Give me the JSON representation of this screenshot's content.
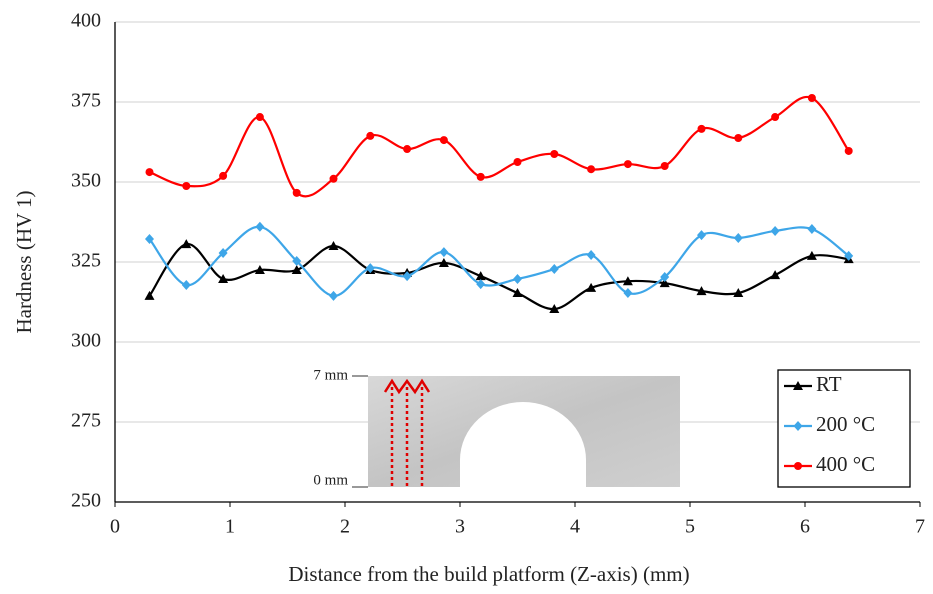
{
  "chart_data": {
    "type": "line",
    "xlabel": "Distance from the build platform (Z-axis) (mm)",
    "ylabel": "Hardness (HV 1)",
    "x": [
      0.3,
      0.62,
      0.94,
      1.26,
      1.58,
      1.9,
      2.22,
      2.54,
      2.86,
      3.18,
      3.5,
      3.82,
      4.14,
      4.46,
      4.78,
      5.1,
      5.42,
      5.74,
      6.06,
      6.38
    ],
    "series": [
      {
        "name": "RT",
        "color": "#000000",
        "marker": "triangle",
        "values": [
          314.4,
          330.6,
          319.7,
          322.5,
          322.5,
          330,
          322.5,
          321.6,
          324.7,
          320.6,
          315.3,
          310.3,
          316.9,
          319,
          318.4,
          315.9,
          315.3,
          320.9,
          326.9,
          325.9
        ]
      },
      {
        "name": "200 °C",
        "color": "#3ea6e8",
        "marker": "diamond",
        "values": [
          332.2,
          317.8,
          327.8,
          336,
          325.3,
          314.4,
          323.1,
          320.6,
          328.1,
          318.1,
          319.7,
          322.8,
          327.2,
          315.3,
          320.3,
          333.4,
          332.5,
          334.7,
          335.3,
          326.9
        ]
      },
      {
        "name": "400 °C",
        "color": "#ff0000",
        "marker": "circle",
        "values": [
          353.1,
          348.75,
          351.9,
          370.3,
          346.6,
          351,
          364.4,
          360.3,
          363.1,
          351.6,
          356.25,
          358.75,
          354,
          355.6,
          355,
          366.6,
          363.75,
          370.3,
          376.25,
          359.7
        ]
      }
    ],
    "xlim": [
      0,
      7
    ],
    "xticks": [
      0,
      1,
      2,
      3,
      4,
      5,
      6,
      7
    ],
    "ylim": [
      250,
      400
    ],
    "yticks": [
      250,
      275,
      300,
      325,
      350,
      375,
      400
    ],
    "grid": true,
    "legend": "lower right",
    "inset": {
      "top_label": "7 mm",
      "bottom_label": "0 mm"
    }
  }
}
